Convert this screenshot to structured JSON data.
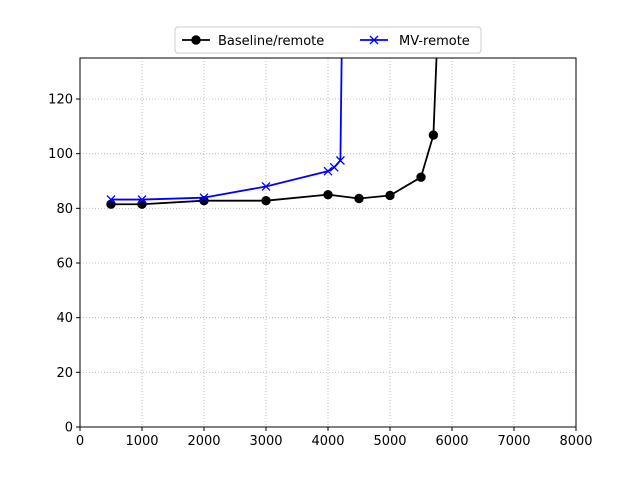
{
  "chart_data": {
    "type": "line",
    "title": "",
    "xlabel": "",
    "ylabel": "",
    "xlim": [
      0,
      8000
    ],
    "ylim": [
      0,
      135
    ],
    "xticks": [
      0,
      1000,
      2000,
      3000,
      4000,
      5000,
      6000,
      7000,
      8000
    ],
    "yticks": [
      0,
      20,
      40,
      60,
      80,
      100,
      120
    ],
    "grid": true,
    "legend_position": "top-center",
    "series": [
      {
        "name": "Baseline/remote",
        "color": "#000000",
        "marker": "circle",
        "x": [
          500,
          1000,
          2000,
          3000,
          4000,
          4500,
          5000,
          5500,
          5700,
          5750
        ],
        "y": [
          81.5,
          81.5,
          82.8,
          82.8,
          85.0,
          83.6,
          84.7,
          91.4,
          106.8,
          135
        ]
      },
      {
        "name": "MV-remote",
        "color": "#0000ff",
        "marker": "x",
        "x": [
          500,
          1000,
          2000,
          3000,
          4000,
          4100,
          4200,
          4220
        ],
        "y": [
          83.2,
          83.2,
          83.9,
          88.0,
          93.6,
          95.0,
          97.5,
          135
        ]
      }
    ],
    "markers_last_point": false
  }
}
